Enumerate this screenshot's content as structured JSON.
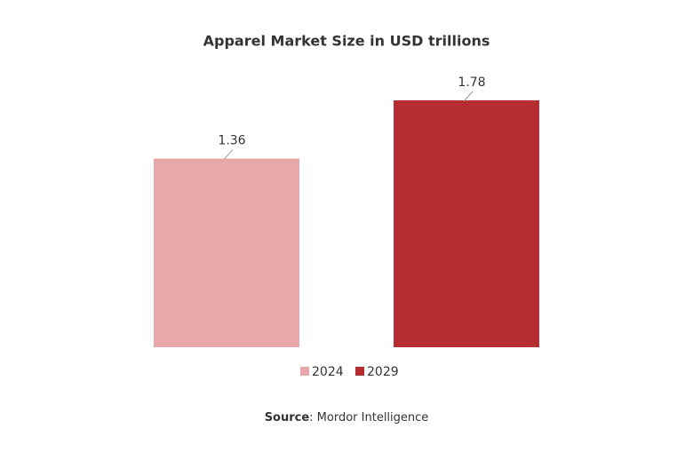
{
  "chart_data": {
    "type": "bar",
    "title": "Apparel Market Size in USD trillions",
    "categories": [
      "2024",
      "2029"
    ],
    "values": [
      1.36,
      1.78
    ],
    "colors": [
      "#e8a7a8",
      "#b52d31"
    ],
    "legend": "bottom",
    "source": {
      "label": "Source",
      "text": ": Mordor Intelligence"
    }
  }
}
